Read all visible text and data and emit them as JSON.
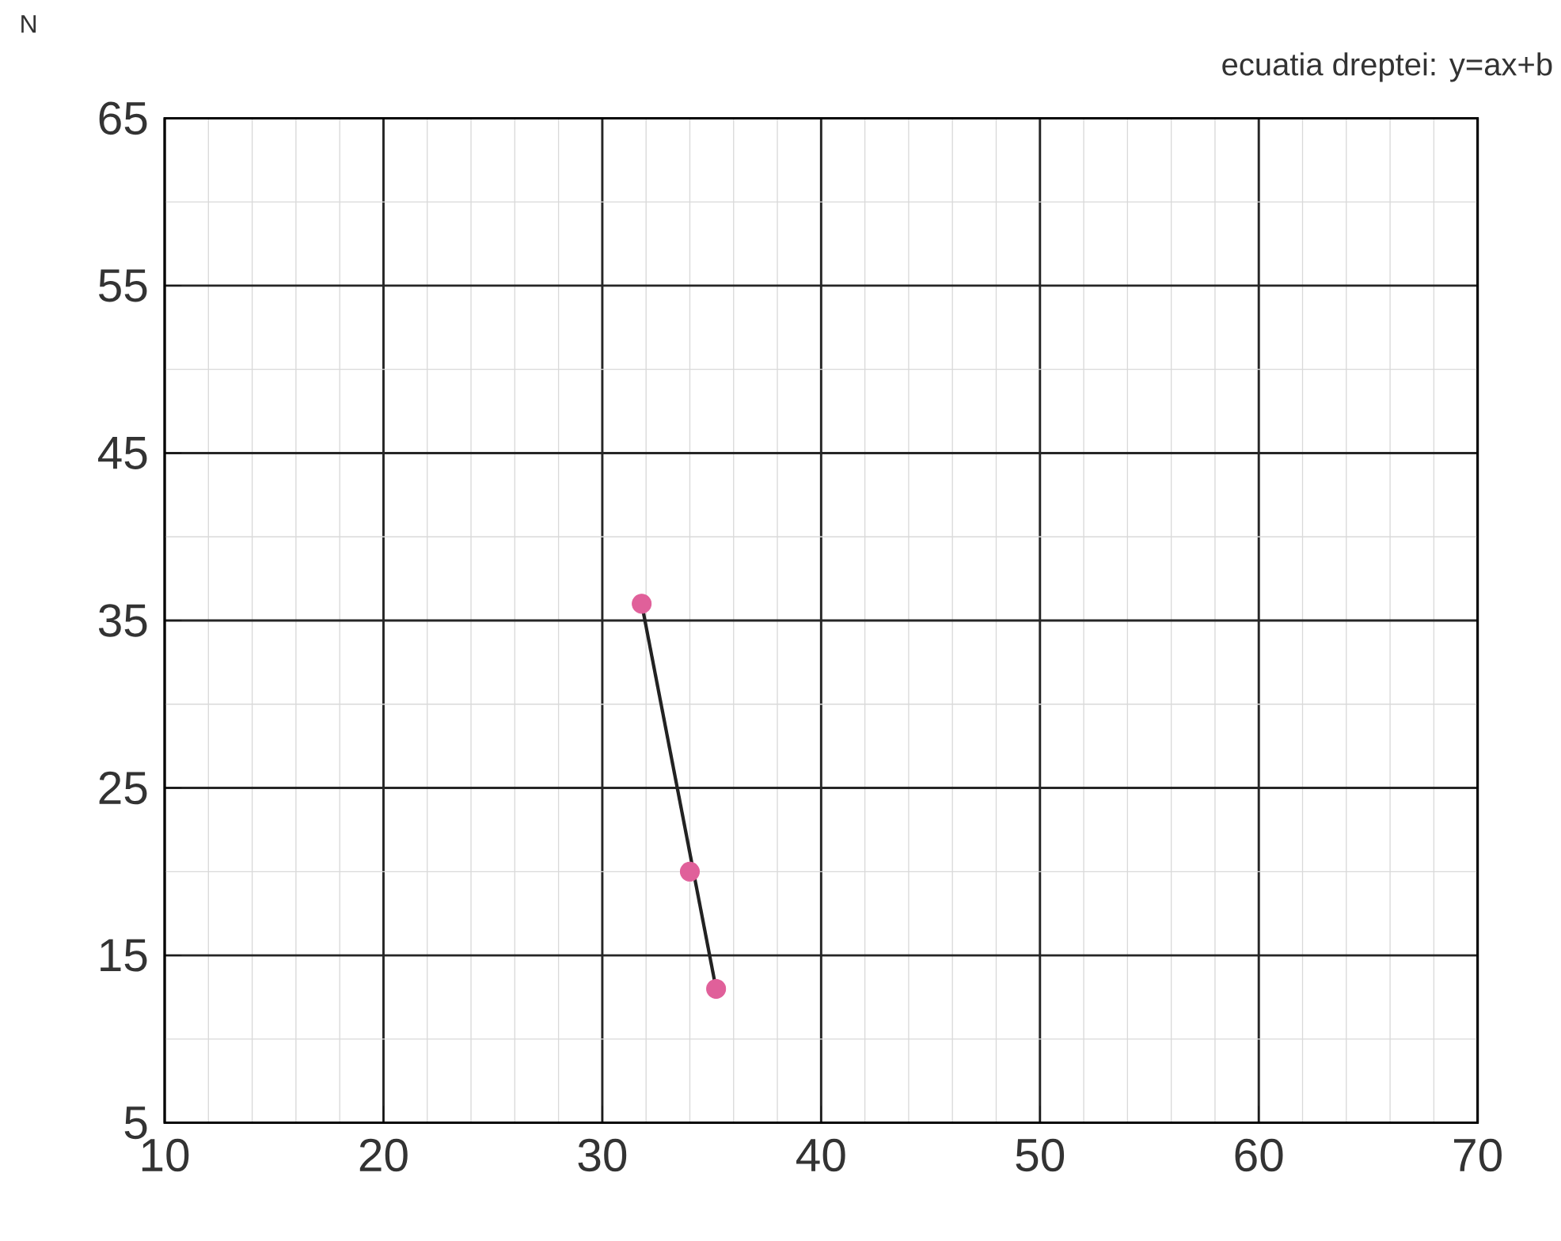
{
  "chart_data": {
    "type": "scatter",
    "annotations": [
      "N",
      "ecuatia dreptei:  y=ax+b"
    ],
    "xlim": [
      10,
      70
    ],
    "xticks": [
      10,
      20,
      30,
      40,
      50,
      60,
      70
    ],
    "ylim": [
      5,
      65
    ],
    "yticks": [
      5,
      15,
      25,
      35,
      45,
      55,
      65
    ],
    "grid": true,
    "series": [
      {
        "color": "#e0609a",
        "x": [
          31.8,
          34.0,
          35.2
        ],
        "values": [
          36,
          20,
          13
        ]
      },
      {
        "type": "line",
        "color": "#222222",
        "x": [
          31.8,
          35.2
        ],
        "values": [
          36,
          13
        ]
      }
    ]
  }
}
